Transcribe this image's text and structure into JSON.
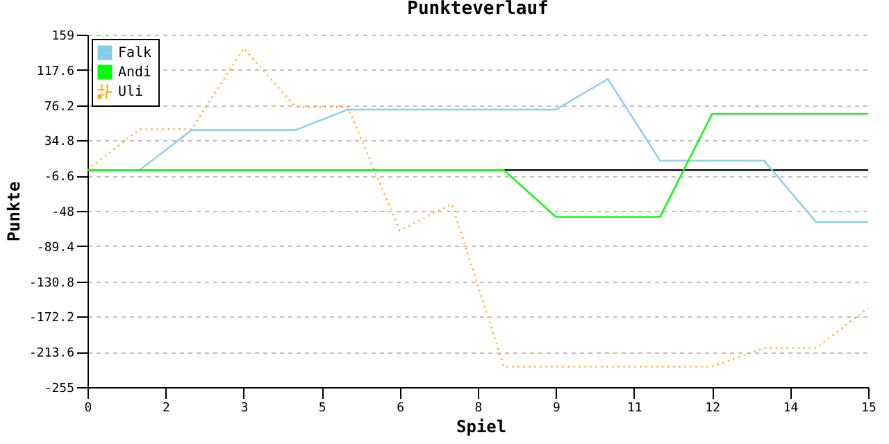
{
  "chart_data": {
    "type": "line",
    "title": "Punkteverlauf",
    "xlabel": "Spiel",
    "ylabel": "Punkte",
    "x": [
      0,
      1,
      2,
      3,
      4,
      5,
      6,
      7,
      8,
      9,
      10,
      11,
      12,
      13,
      14,
      15
    ],
    "series": [
      {
        "name": "Falk",
        "color": "#87ceeb",
        "line_style": "solid",
        "values": [
          0,
          0,
          47,
          47,
          47,
          71,
          71,
          71,
          71,
          71,
          107,
          11,
          11,
          11,
          -61,
          -61
        ]
      },
      {
        "name": "Andi",
        "color": "#00ff00",
        "line_style": "solid",
        "values": [
          0,
          0,
          0,
          0,
          0,
          0,
          0,
          0,
          0,
          -55,
          -55,
          -55,
          66,
          66,
          66,
          66
        ]
      },
      {
        "name": "Uli",
        "color": "#ffa500",
        "line_style": "dotted",
        "values": [
          0,
          48,
          48,
          143,
          74,
          74,
          -71,
          -40,
          -231,
          -231,
          -231,
          -231,
          -231,
          -209,
          -209,
          -162
        ]
      }
    ],
    "xlim": [
      0,
      15
    ],
    "xticks": [
      0,
      {
        "value": 1.5,
        "label": "2"
      },
      3,
      {
        "value": 4.5,
        "label": "5"
      },
      6,
      {
        "value": 7.5,
        "label": "8"
      },
      9,
      {
        "value": 10.5,
        "label": "11"
      },
      12,
      {
        "value": 13.5,
        "label": "14"
      },
      15
    ],
    "ylim": [
      -255,
      159
    ],
    "yticks": [
      -255,
      -213.6,
      -172.2,
      -130.8,
      -89.4,
      -48,
      -6.6,
      34.8,
      76.2,
      117.6,
      159
    ],
    "ref_lines": [
      {
        "axis": "y",
        "value": 0,
        "color": "#000000"
      }
    ],
    "grid": "y",
    "legend": "top left",
    "marker": "none"
  }
}
